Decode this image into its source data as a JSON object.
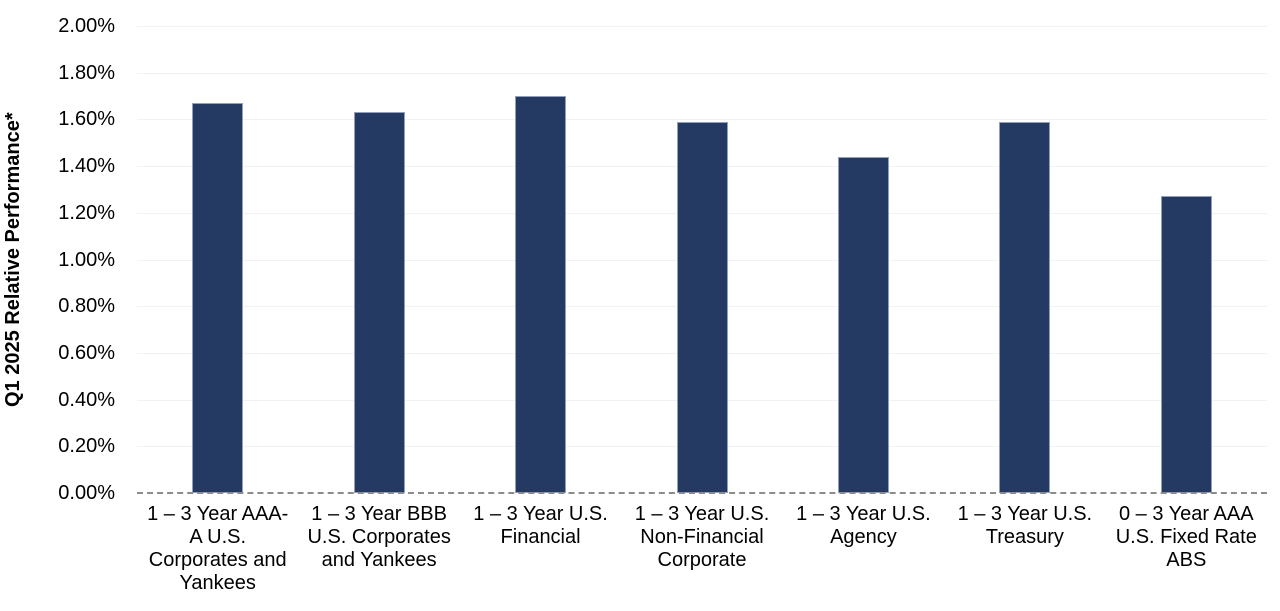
{
  "chart_data": {
    "type": "bar",
    "title": "",
    "xlabel": "",
    "ylabel": "Q1 2025 Relative Performance*",
    "categories": [
      "1 – 3 Year AAA-A U.S. Corporates and Yankees",
      "1 – 3 Year BBB U.S. Corporates and Yankees",
      "1 – 3 Year U.S. Financial",
      "1 – 3 Year U.S. Non-Financial Corporate",
      "1 – 3 Year U.S. Agency",
      "1 – 3 Year U.S. Treasury",
      "0 – 3 Year AAA U.S. Fixed Rate ABS"
    ],
    "values": [
      1.67,
      1.63,
      1.7,
      1.59,
      1.44,
      1.59,
      1.27
    ],
    "value_unit": "%",
    "ylim": [
      0.0,
      2.0
    ],
    "ytick_step": 0.2,
    "ytick_labels": [
      "0.00%",
      "0.20%",
      "0.40%",
      "0.60%",
      "0.80%",
      "1.00%",
      "1.20%",
      "1.40%",
      "1.60%",
      "1.80%",
      "2.00%"
    ],
    "grid": "horizontal",
    "zero_line_style": "dashed",
    "legend": "none",
    "colors": {
      "bar_fill": "#253A63",
      "bar_border": "#93A0BC",
      "gridline": "#F2F2F2",
      "zero_line": "#8C8C8C",
      "text": "#000000",
      "background": "#FFFFFF"
    }
  }
}
